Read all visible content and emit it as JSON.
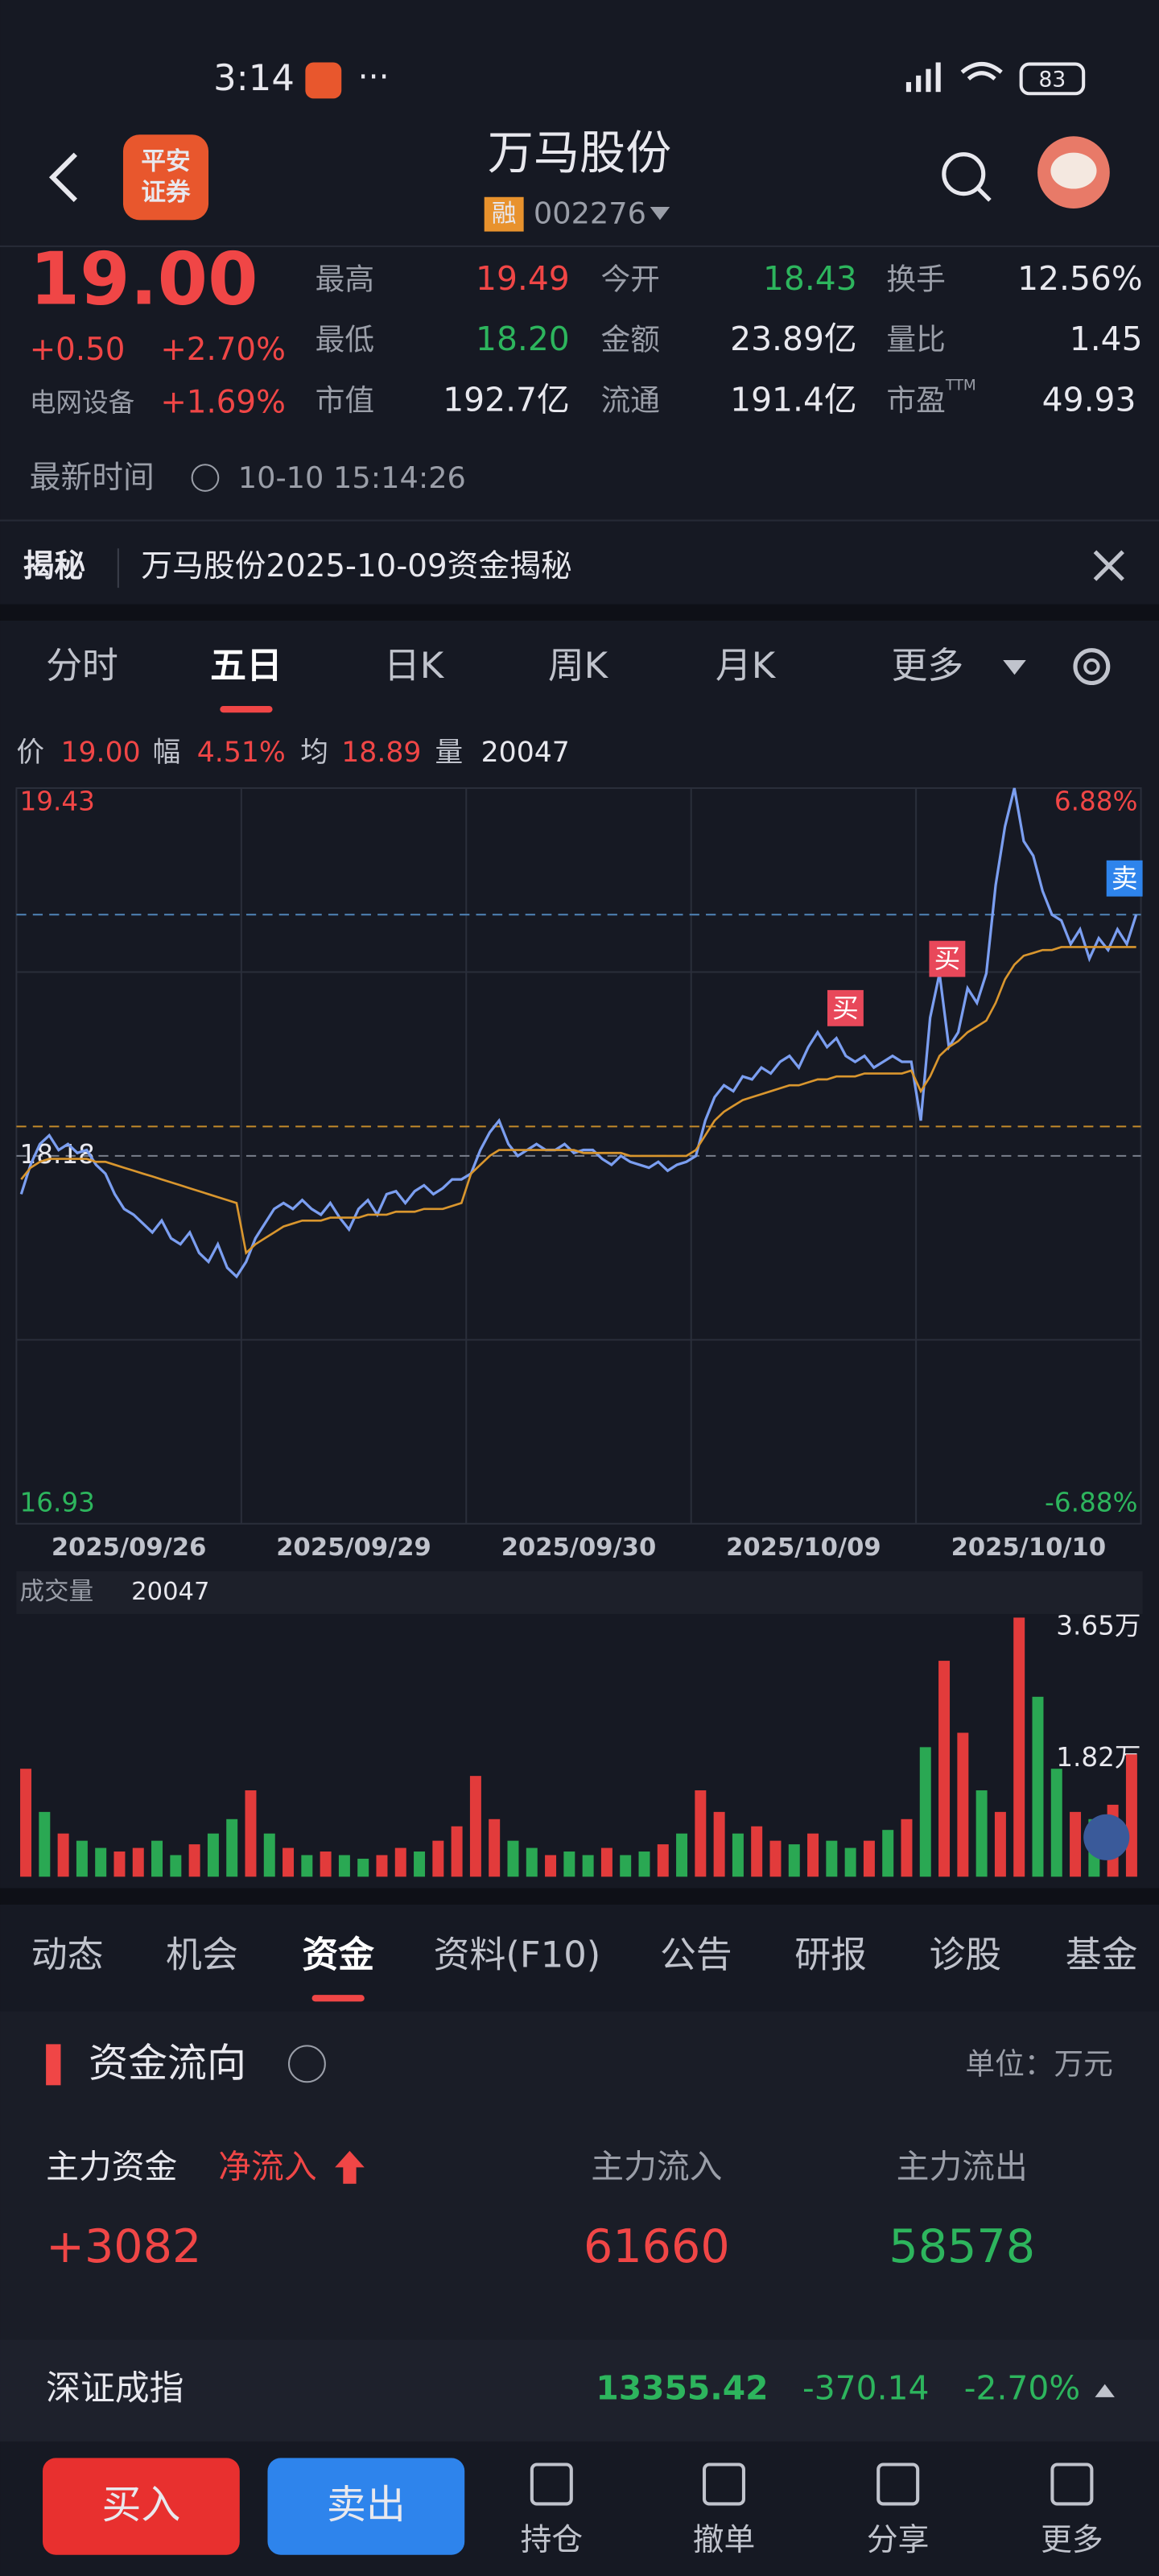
{
  "status_bar": {
    "time": "3:14",
    "battery": "83"
  },
  "header": {
    "title": "万马股份",
    "tag": "融",
    "code": "002276",
    "logo": [
      "平安",
      "证券"
    ]
  },
  "quote": {
    "price": "19.00",
    "change": "+0.50",
    "change_pct": "+2.70%",
    "sector": "电网设备",
    "sector_pct": "+1.69%",
    "fields": [
      {
        "label": "最高",
        "value": "19.49",
        "color": "#f04646"
      },
      {
        "label": "今开",
        "value": "18.43",
        "color": "#2db55d"
      },
      {
        "label": "换手",
        "value": "12.56%",
        "color": "#e8e8ee"
      },
      {
        "label": "最低",
        "value": "18.20",
        "color": "#2db55d"
      },
      {
        "label": "金额",
        "value": "23.89亿",
        "color": "#e8e8ee"
      },
      {
        "label": "量比",
        "value": "1.45",
        "color": "#e8e8ee"
      },
      {
        "label": "市值",
        "value": "192.7亿",
        "color": "#e8e8ee"
      },
      {
        "label": "流通",
        "value": "191.4亿",
        "color": "#e8e8ee"
      },
      {
        "label": "市盈",
        "value": "49.93",
        "color": "#e8e8ee",
        "sup": "TTM"
      }
    ]
  },
  "update": {
    "label": "最新时间",
    "time": "10-10 15:14:26"
  },
  "banner": {
    "tag": "揭秘",
    "text": "万马股份2025-10-09资金揭秘"
  },
  "tabs": {
    "items": [
      "分时",
      "五日",
      "日K",
      "周K",
      "月K",
      "更多"
    ],
    "active": 1
  },
  "info_line": [
    {
      "label": "价",
      "value": "19.00"
    },
    {
      "label": "幅",
      "value": "4.51%"
    },
    {
      "label": "均",
      "value": "18.89"
    },
    {
      "label": "量",
      "value": "20047"
    }
  ],
  "chart_data": [
    {
      "type": "line",
      "categories": [
        "2025/09/26",
        "2025/09/29",
        "2025/09/30",
        "2025/10/09",
        "2025/10/10"
      ],
      "ylim": [
        16.93,
        19.43
      ],
      "yticks": [
        16.93,
        18.18,
        19.43
      ],
      "y2lim": [
        -6.88,
        6.88
      ],
      "y2ticks": [
        {
          "value": -6.88,
          "label": "-6.88%"
        },
        {
          "value": 6.88,
          "label": "6.88%"
        }
      ],
      "grid": true,
      "reference_lines": [
        {
          "value": 19.0,
          "color": "#4d7fb0"
        },
        {
          "value": 18.28,
          "color": "#c48a2a"
        },
        {
          "value": 18.18,
          "color": "#7a7f8c"
        }
      ],
      "annotations": [
        {
          "text": "买"
        },
        {
          "text": "买"
        },
        {
          "text": "卖"
        }
      ],
      "series": [
        {
          "color": "#7b9ef0",
          "values": [
            [
              18.05,
              18.15,
              18.22,
              18.25,
              18.2,
              18.22,
              18.19,
              18.2,
              18.15,
              18.12,
              18.05,
              18.0,
              17.98,
              17.95,
              17.92,
              17.96,
              17.9,
              17.88,
              17.92,
              17.85,
              17.82,
              17.88,
              17.8,
              17.77
            ],
            [
              17.82,
              17.9,
              17.95,
              18.0,
              18.02,
              18.0,
              18.03,
              18.0,
              17.98,
              18.02,
              17.97,
              17.93,
              18.0,
              18.03,
              17.98,
              18.05,
              18.06,
              18.02,
              18.06,
              18.08,
              18.05,
              18.07,
              18.1,
              18.1
            ],
            [
              18.12,
              18.2,
              18.26,
              18.3,
              18.22,
              18.18,
              18.2,
              18.22,
              18.2,
              18.2,
              18.22,
              18.19,
              18.2,
              18.2,
              18.17,
              18.15,
              18.18,
              18.16,
              18.15,
              18.14,
              18.16,
              18.13,
              18.15,
              18.16
            ],
            [
              18.18,
              18.3,
              18.38,
              18.42,
              18.4,
              18.45,
              18.44,
              18.48,
              18.46,
              18.5,
              18.52,
              18.48,
              18.55,
              18.6,
              18.55,
              18.58,
              18.52,
              18.5,
              18.52,
              18.48,
              18.5,
              18.52,
              18.5,
              18.5
            ],
            [
              18.3,
              18.65,
              18.8,
              18.55,
              18.6,
              18.75,
              18.7,
              18.8,
              19.1,
              19.3,
              19.43,
              19.25,
              19.2,
              19.08,
              19.0,
              18.98,
              18.9,
              18.95,
              18.85,
              18.92,
              18.88,
              18.95,
              18.9,
              19.0
            ]
          ]
        },
        {
          "color": "#d9962e",
          "values": [
            [
              18.1,
              18.14,
              18.16,
              18.17,
              18.17,
              18.17,
              18.17,
              18.17,
              18.16,
              18.16,
              18.15,
              18.14,
              18.13,
              18.12,
              18.11,
              18.1,
              18.09,
              18.08,
              18.07,
              18.06,
              18.05,
              18.04,
              18.03,
              18.02
            ],
            [
              17.85,
              17.88,
              17.9,
              17.92,
              17.94,
              17.95,
              17.96,
              17.96,
              17.96,
              17.97,
              17.97,
              17.97,
              17.97,
              17.98,
              17.98,
              17.98,
              17.99,
              17.99,
              17.99,
              18.0,
              18.0,
              18.0,
              18.01,
              18.02
            ],
            [
              18.12,
              18.15,
              18.18,
              18.2,
              18.2,
              18.2,
              18.2,
              18.2,
              18.2,
              18.2,
              18.2,
              18.2,
              18.19,
              18.19,
              18.19,
              18.19,
              18.19,
              18.18,
              18.18,
              18.18,
              18.18,
              18.18,
              18.18,
              18.18
            ],
            [
              18.2,
              18.25,
              18.3,
              18.33,
              18.35,
              18.37,
              18.38,
              18.39,
              18.4,
              18.41,
              18.42,
              18.42,
              18.43,
              18.44,
              18.44,
              18.45,
              18.45,
              18.45,
              18.46,
              18.46,
              18.46,
              18.46,
              18.46,
              18.47
            ],
            [
              18.4,
              18.45,
              18.52,
              18.55,
              18.57,
              18.6,
              18.62,
              18.64,
              18.7,
              18.78,
              18.83,
              18.86,
              18.87,
              18.88,
              18.88,
              18.89,
              18.89,
              18.89,
              18.89,
              18.89,
              18.89,
              18.89,
              18.89,
              18.89
            ]
          ]
        }
      ]
    },
    {
      "type": "bar",
      "title": "成交量",
      "value_label": "20047",
      "ylim": [
        0,
        36500
      ],
      "yticks": [
        {
          "value": 18200,
          "label": "1.82万"
        },
        {
          "value": 36500,
          "label": "3.65万"
        }
      ],
      "values": [
        15000,
        9000,
        6000,
        5000,
        4000,
        3500,
        4000,
        5000,
        3000,
        4500,
        6000,
        8000,
        12000,
        6000,
        4000,
        3000,
        3500,
        3000,
        2500,
        3000,
        4000,
        3500,
        5000,
        7000,
        14000,
        8000,
        5000,
        4000,
        3000,
        3500,
        3000,
        4000,
        3000,
        3500,
        4500,
        6000,
        12000,
        9000,
        6000,
        7000,
        5000,
        4500,
        6000,
        5000,
        4000,
        5000,
        6500,
        8000,
        18000,
        30000,
        20000,
        12000,
        9000,
        36000,
        25000,
        15000,
        9000,
        8000,
        10000,
        17000
      ],
      "colors": [
        "#e23b3b",
        "#2aa853",
        "#e23b3b",
        "#2aa853",
        "#2aa853",
        "#e23b3b",
        "#e23b3b",
        "#2aa853",
        "#2aa853",
        "#e23b3b",
        "#2aa853",
        "#2aa853",
        "#e23b3b",
        "#2aa853",
        "#e23b3b",
        "#2aa853",
        "#e23b3b",
        "#2aa853",
        "#2aa853",
        "#e23b3b",
        "#e23b3b",
        "#2aa853",
        "#e23b3b",
        "#e23b3b",
        "#e23b3b",
        "#e23b3b",
        "#2aa853",
        "#2aa853",
        "#e23b3b",
        "#2aa853",
        "#2aa853",
        "#e23b3b",
        "#2aa853",
        "#2aa853",
        "#e23b3b",
        "#2aa853",
        "#e23b3b",
        "#e23b3b",
        "#2aa853",
        "#e23b3b",
        "#e23b3b",
        "#2aa853",
        "#e23b3b",
        "#2aa853",
        "#2aa853",
        "#e23b3b",
        "#2aa853",
        "#e23b3b",
        "#2aa853",
        "#e23b3b",
        "#e23b3b",
        "#2aa853",
        "#e23b3b",
        "#e23b3b",
        "#2aa853",
        "#2aa853",
        "#e23b3b",
        "#2aa853",
        "#e23b3b",
        "#e23b3b"
      ]
    }
  ],
  "bottom_tabs": {
    "items": [
      "动态",
      "机会",
      "资金",
      "资料(F10)",
      "公告",
      "研报",
      "诊股",
      "基金"
    ],
    "active": 2
  },
  "fund_flow": {
    "title": "资金流向",
    "unit": "单位：万元",
    "main_label": "主力资金",
    "net_label": "净流入",
    "net": "+3082",
    "inflow_label": "主力流入",
    "inflow": "61660",
    "outflow_label": "主力流出",
    "outflow": "58578"
  },
  "index_bar": {
    "name": "深证成指",
    "value": "13355.42",
    "change": "-370.14",
    "change_pct": "-2.70%"
  },
  "toolbar": {
    "buy": "买入",
    "sell": "卖出",
    "items": [
      "持仓",
      "撤单",
      "分享",
      "更多"
    ]
  }
}
